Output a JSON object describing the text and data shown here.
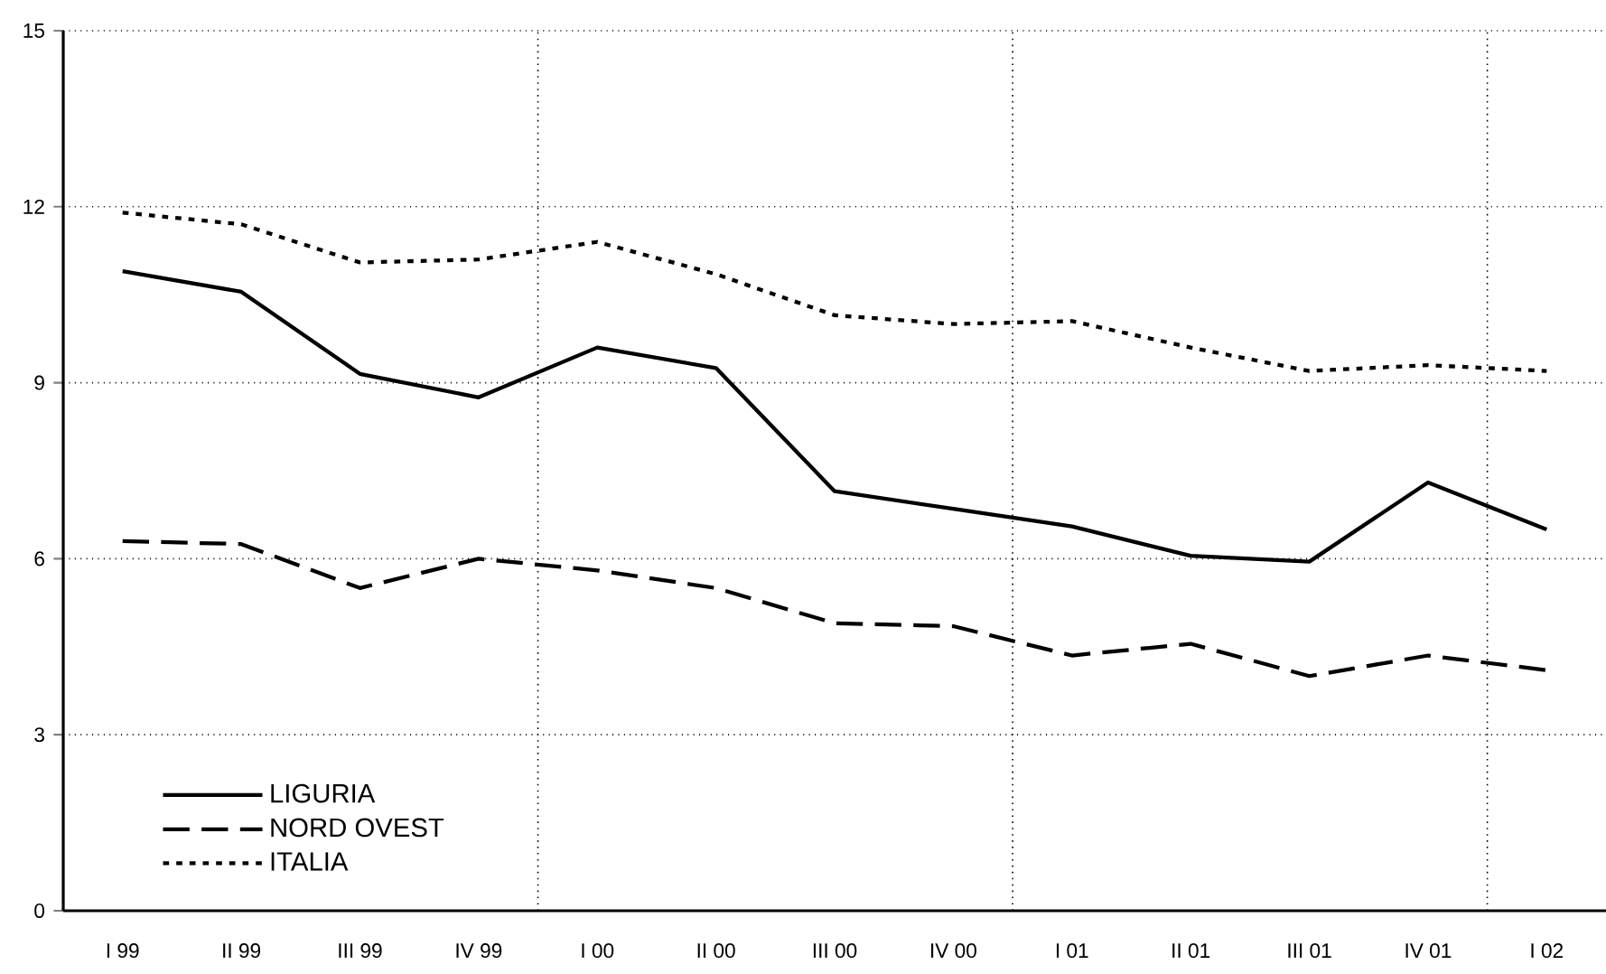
{
  "chart_data": {
    "type": "line",
    "categories": [
      "I 99",
      "II 99",
      "III 99",
      "IV 99",
      "I 00",
      "II 00",
      "III 00",
      "IV 00",
      "I 01",
      "II 01",
      "III 01",
      "IV 01",
      "I 02"
    ],
    "series": [
      {
        "name": "LIGURIA",
        "color": "#000000",
        "line_style": "solid",
        "values": [
          10.9,
          10.55,
          9.15,
          8.75,
          9.6,
          9.25,
          7.15,
          6.85,
          6.55,
          6.05,
          5.95,
          7.3,
          6.5
        ]
      },
      {
        "name": "NORD OVEST",
        "color": "#000000",
        "line_style": "dashed",
        "values": [
          6.3,
          6.25,
          5.5,
          6.0,
          5.8,
          5.5,
          4.9,
          4.85,
          4.35,
          4.55,
          4.0,
          4.35,
          4.1
        ]
      },
      {
        "name": "ITALIA",
        "color": "#000000",
        "line_style": "dotted",
        "values": [
          11.9,
          11.7,
          11.05,
          11.1,
          11.4,
          10.85,
          10.15,
          10.0,
          10.05,
          9.6,
          9.2,
          9.3,
          9.2
        ]
      }
    ],
    "ylim": [
      0,
      15
    ],
    "yticks": [
      0,
      3,
      6,
      9,
      12,
      15
    ],
    "grid": "y",
    "legend": "bottom left",
    "marker": "none"
  }
}
